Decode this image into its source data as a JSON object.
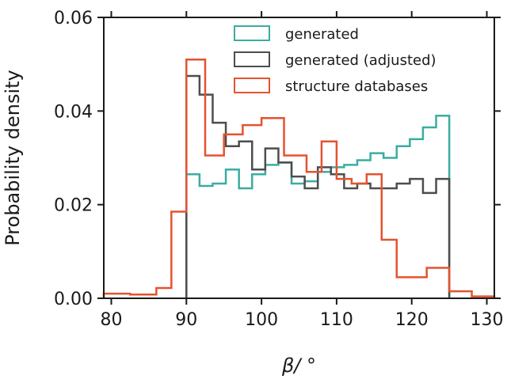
{
  "chart_data": {
    "type": "histogram",
    "xlabel": "β/ °",
    "ylabel": "Probability density",
    "xlim": [
      79,
      131
    ],
    "ylim": [
      0,
      0.06
    ],
    "xticks": [
      80,
      90,
      100,
      110,
      120,
      130
    ],
    "xtick_labels": [
      "80",
      "90",
      "100",
      "110",
      "120",
      "130"
    ],
    "yticks": [
      0.0,
      0.02,
      0.04,
      0.06
    ],
    "ytick_labels": [
      "0.00",
      "0.02",
      "0.04",
      "0.06"
    ],
    "grid": false,
    "legend_position": "top-right",
    "series": [
      {
        "name": "generated",
        "color": "#3aada0",
        "bin_edges": [
          90,
          91.75,
          93.5,
          95.25,
          97,
          98.75,
          100.5,
          102.25,
          104,
          105.75,
          107.5,
          109.25,
          111,
          112.75,
          114.5,
          116.25,
          118,
          119.75,
          121.5,
          123.25,
          125
        ],
        "values": [
          0.0265,
          0.024,
          0.0245,
          0.0275,
          0.0235,
          0.0265,
          0.0285,
          0.029,
          0.0245,
          0.025,
          0.027,
          0.028,
          0.0285,
          0.0295,
          0.031,
          0.03,
          0.0325,
          0.034,
          0.0365,
          0.039
        ]
      },
      {
        "name": "generated (adjusted)",
        "color": "#4d4d4d",
        "bin_edges": [
          90,
          91.75,
          93.5,
          95.25,
          97,
          98.75,
          100.5,
          102.25,
          104,
          105.75,
          107.5,
          109.25,
          111,
          112.75,
          114.5,
          116.25,
          118,
          119.75,
          121.5,
          123.25,
          125
        ],
        "values": [
          0.0475,
          0.0435,
          0.0375,
          0.0325,
          0.0335,
          0.0275,
          0.032,
          0.029,
          0.026,
          0.0235,
          0.028,
          0.0265,
          0.0235,
          0.0245,
          0.0235,
          0.0235,
          0.0245,
          0.0255,
          0.0225,
          0.0255
        ]
      },
      {
        "name": "structure databases",
        "color": "#e4532f",
        "bin_edges": [
          79,
          82.5,
          86,
          88,
          90,
          92.5,
          95,
          97.5,
          100,
          103,
          106,
          108,
          110,
          112,
          114,
          116,
          118,
          122,
          125,
          128,
          131
        ],
        "values": [
          0.001,
          0.0008,
          0.0022,
          0.0185,
          0.051,
          0.0305,
          0.035,
          0.037,
          0.0385,
          0.0305,
          0.027,
          0.0335,
          0.0255,
          0.0245,
          0.0265,
          0.0125,
          0.0045,
          0.0065,
          0.0015,
          0.0004
        ]
      }
    ]
  }
}
